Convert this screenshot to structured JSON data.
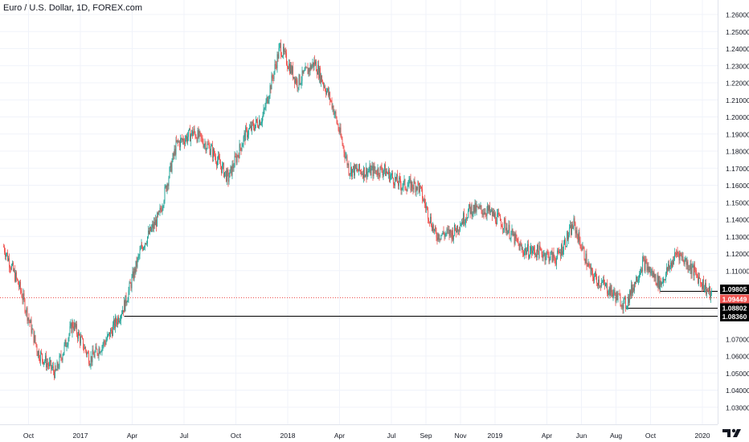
{
  "header": {
    "title": "Euro / U.S. Dollar, 1D, FOREX.com"
  },
  "colors": {
    "up": "#26a69a",
    "down": "#ef5350",
    "grid": "#f0f3fa",
    "axis_text": "#131722",
    "last_price_line": "#ef5350",
    "level_line": "#000000"
  },
  "chart_data": {
    "type": "candlestick",
    "title": "Euro / U.S. Dollar, 1D, FOREX.com",
    "x_axis": {
      "tick_labels": [
        "Oct",
        "2017",
        "Apr",
        "Jul",
        "Oct",
        "2018",
        "Apr",
        "Jul",
        "Sep",
        "Nov",
        "2019",
        "Apr",
        "Jun",
        "Aug",
        "Oct",
        "2020"
      ],
      "range": [
        "2016-09",
        "2020-02"
      ]
    },
    "y_axis": {
      "tick_labels": [
        "1.26000",
        "1.25000",
        "1.24000",
        "1.23000",
        "1.22000",
        "1.21000",
        "1.20000",
        "1.19000",
        "1.18000",
        "1.17000",
        "1.16000",
        "1.15000",
        "1.14000",
        "1.13000",
        "1.12000",
        "1.11000",
        "1.07000",
        "1.06000",
        "1.05000",
        "1.04000",
        "1.03000"
      ],
      "ylim": [
        1.025,
        1.265
      ]
    },
    "grid": true,
    "price_path_month_end": [
      {
        "x": "2016-09",
        "y": 1.124
      },
      {
        "x": "2016-10",
        "y": 1.098
      },
      {
        "x": "2016-11",
        "y": 1.062
      },
      {
        "x": "2016-12",
        "y": 1.05
      },
      {
        "x": "2017-01",
        "y": 1.079
      },
      {
        "x": "2017-02",
        "y": 1.058
      },
      {
        "x": "2017-03",
        "y": 1.07
      },
      {
        "x": "2017-04",
        "y": 1.09
      },
      {
        "x": "2017-05",
        "y": 1.124
      },
      {
        "x": "2017-06",
        "y": 1.142
      },
      {
        "x": "2017-07",
        "y": 1.184
      },
      {
        "x": "2017-08",
        "y": 1.191
      },
      {
        "x": "2017-09",
        "y": 1.181
      },
      {
        "x": "2017-10",
        "y": 1.164
      },
      {
        "x": "2017-11",
        "y": 1.19
      },
      {
        "x": "2017-12",
        "y": 1.2
      },
      {
        "x": "2018-01",
        "y": 1.241
      },
      {
        "x": "2018-02",
        "y": 1.22
      },
      {
        "x": "2018-03",
        "y": 1.232
      },
      {
        "x": "2018-04",
        "y": 1.208
      },
      {
        "x": "2018-05",
        "y": 1.169
      },
      {
        "x": "2018-06",
        "y": 1.168
      },
      {
        "x": "2018-07",
        "y": 1.169
      },
      {
        "x": "2018-08",
        "y": 1.16
      },
      {
        "x": "2018-09",
        "y": 1.16
      },
      {
        "x": "2018-10",
        "y": 1.131
      },
      {
        "x": "2018-11",
        "y": 1.132
      },
      {
        "x": "2018-12",
        "y": 1.146
      },
      {
        "x": "2019-01",
        "y": 1.145
      },
      {
        "x": "2019-02",
        "y": 1.137
      },
      {
        "x": "2019-03",
        "y": 1.122
      },
      {
        "x": "2019-04",
        "y": 1.121
      },
      {
        "x": "2019-05",
        "y": 1.117
      },
      {
        "x": "2019-06",
        "y": 1.137
      },
      {
        "x": "2019-07",
        "y": 1.108
      },
      {
        "x": "2019-08",
        "y": 1.099
      },
      {
        "x": "2019-09",
        "y": 1.09
      },
      {
        "x": "2019-10",
        "y": 1.115
      },
      {
        "x": "2019-11",
        "y": 1.102
      },
      {
        "x": "2019-12",
        "y": 1.121
      },
      {
        "x": "2020-01",
        "y": 1.109
      },
      {
        "x": "2020-02",
        "y": 1.0945
      }
    ],
    "price_labels": [
      {
        "text": "1.09805",
        "value": 1.09805,
        "style": "level"
      },
      {
        "text": "1.09449",
        "value": 1.09449,
        "style": "last"
      },
      {
        "text": "1.08802",
        "value": 1.08802,
        "style": "level"
      },
      {
        "text": "1.08360",
        "value": 1.0836,
        "style": "level"
      }
    ],
    "horizontal_levels": [
      {
        "value": 1.09805,
        "from": "2019-11"
      },
      {
        "value": 1.08802,
        "from": "2019-09"
      },
      {
        "value": 1.0836,
        "from": "2017-04"
      }
    ],
    "last_price": 1.09449
  },
  "logo": {
    "name": "tradingview-logo-icon"
  }
}
